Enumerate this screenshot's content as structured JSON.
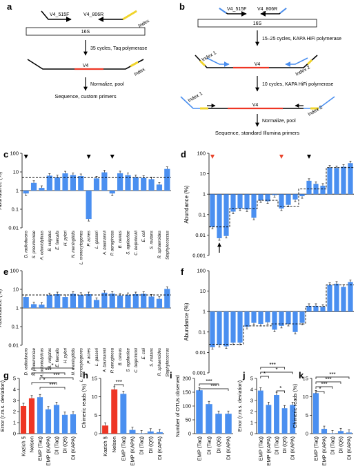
{
  "panel_labels": [
    "a",
    "b",
    "c",
    "d",
    "e",
    "f",
    "g",
    "h",
    "i",
    "j",
    "k"
  ],
  "schematic": {
    "a": {
      "primer_f": "V4_515F",
      "primer_r": "V4_806R",
      "index": "Index",
      "gene": "16S",
      "step1": "35 cycles, Taq polymerase",
      "region": "V4",
      "index2": "Index",
      "step2": "Normalize, pool",
      "step3": "Sequence, custom primers"
    },
    "b": {
      "primer_f": "V4_515F",
      "primer_r": "V4_806R",
      "gene": "16S",
      "step1": "15–25 cycles, KAPA HiFi polymerase",
      "index1": "Index 1",
      "region": "V4",
      "index2": "Index 2",
      "step2": "10 cycles, KAPA HiFi polymerase",
      "index1b": "Index 1",
      "region2": "V4",
      "index2b": "Index 2",
      "step3": "Normalize, pool",
      "step4": "Sequence, standard Illumina primers"
    }
  },
  "colors": {
    "blue": "#4a8ff0",
    "red": "#ee3524",
    "orange_marker": "#e8452c",
    "black": "#000000"
  },
  "chart_data": [
    {
      "panel": "c",
      "type": "bar",
      "ylabel": "Abundance (%)",
      "scale": "log",
      "ylim": [
        0.01,
        100
      ],
      "yticks": [
        "100",
        "10",
        "1",
        "0.1",
        "0.01"
      ],
      "categories": [
        "D. radiodurans",
        "S. pneumoniae",
        "A. odontolyticus",
        "B. vulgatus",
        "E. faecalis",
        "H. pylori",
        "N. meningitidis",
        "L. monocytogenes",
        "P. acnes",
        "L. gasseri",
        "A. baumannii",
        "P. aeruginosa",
        "B. cereus",
        "S. agalactiae",
        "C. beijerinckii",
        "E. coli",
        "S. mutans",
        "R. sphaeroides",
        "Staphylococcus"
      ],
      "values": [
        0.7,
        2.6,
        1.4,
        6.3,
        5.2,
        8.4,
        6.8,
        6.0,
        0.03,
        4.5,
        9.5,
        0.7,
        8.5,
        6.7,
        5.3,
        4.8,
        4.1,
        2.1,
        14.5
      ],
      "expected": 5.0,
      "markers": [
        {
          "category": "D. radiodurans",
          "color": "#000000"
        },
        {
          "category": "P. acnes",
          "color": "#000000"
        },
        {
          "category": "P. aeruginosa",
          "color": "#000000"
        }
      ]
    },
    {
      "panel": "d",
      "type": "bar",
      "ylabel": "Abundance (%)",
      "scale": "log",
      "ylim": [
        0.001,
        100
      ],
      "yticks": [
        "100",
        "10",
        "1",
        "0.1",
        "0.01",
        "0.001"
      ],
      "values": [
        0.025,
        0.007,
        0.009,
        0.14,
        0.2,
        0.18,
        0.07,
        0.5,
        0.45,
        0.9,
        0.2,
        0.3,
        0.55,
        0.8,
        4.5,
        3.2,
        2.6,
        20,
        19,
        22,
        33
      ],
      "expected": [
        0.025,
        0.025,
        0.025,
        0.2,
        0.2,
        0.2,
        0.2,
        0.5,
        0.5,
        0.5,
        0.25,
        0.25,
        0.25,
        1.8,
        1.8,
        1.8,
        1.8,
        20,
        20,
        20,
        20
      ],
      "markers": [
        {
          "index": 0,
          "color": "#e8452c"
        },
        {
          "index": 10,
          "color": "#e8452c"
        },
        {
          "index": 14,
          "color": "#000000"
        }
      ]
    },
    {
      "panel": "e",
      "type": "bar",
      "ylabel": "Abundance (%)",
      "scale": "log",
      "ylim": [
        0.01,
        100
      ],
      "yticks": [
        "100",
        "10",
        "1",
        "0.1",
        "0.01"
      ],
      "categories": [
        "D. radiodurans",
        "S. pneumoniae",
        "A. odontolyticus",
        "B. vulgatus",
        "E. faecalis",
        "H. pylori",
        "N. meningitidis",
        "L. monocytogenes",
        "P. acnes",
        "L. gasseri",
        "A. baumannii",
        "P. aeruginosa",
        "B. cereus",
        "S. agalactiae",
        "C. beijerinckii",
        "E. coli",
        "S. mutans",
        "R. sphaeroides",
        "Staphylococcus"
      ],
      "values": [
        3.9,
        1.6,
        1.5,
        4.9,
        5.5,
        3.9,
        5.7,
        5.1,
        5.5,
        2.7,
        6.6,
        5.8,
        4.6,
        5.0,
        5.5,
        5.7,
        4.1,
        3.1,
        10.5
      ],
      "expected": 5.0
    },
    {
      "panel": "f",
      "type": "bar",
      "ylabel": "Abundance (%)",
      "scale": "log",
      "ylim": [
        0.001,
        100
      ],
      "yticks": [
        "100",
        "10",
        "1",
        "0.1",
        "0.01",
        "0.001"
      ],
      "values": [
        0.018,
        0.023,
        0.02,
        0.03,
        0.03,
        0.18,
        0.28,
        0.25,
        0.3,
        0.13,
        0.2,
        0.25,
        0.1,
        0.28,
        1.9,
        1.9,
        1.7,
        20,
        23,
        16,
        28
      ],
      "expected": [
        0.025,
        0.025,
        0.025,
        0.025,
        0.025,
        0.2,
        0.2,
        0.2,
        0.2,
        0.25,
        0.25,
        0.25,
        0.25,
        0.25,
        1.8,
        1.8,
        1.8,
        20,
        20,
        20,
        20
      ]
    },
    {
      "panel": "g",
      "type": "bar",
      "ylabel": "Error (r.m.s. deviation)",
      "ylim": [
        0,
        5
      ],
      "yticks": [
        "0",
        "1",
        "2",
        "3",
        "4",
        "5"
      ],
      "categories": [
        "Kozich §",
        "Nelson",
        "EMP (Taq)",
        "EMP (KAPA)",
        "DI (Taq)",
        "DI (Q5)",
        "DI (KAPA)"
      ],
      "values": [
        2.5,
        3.2,
        3.3,
        2.2,
        2.6,
        1.7,
        1.75
      ],
      "colors": [
        "#ee3524",
        "#ee3524",
        "#4a8ff0",
        "#4a8ff0",
        "#4a8ff0",
        "#4a8ff0",
        "#4a8ff0"
      ],
      "significance": [
        "*",
        "***",
        "***",
        "*",
        "***"
      ]
    },
    {
      "panel": "h",
      "type": "bar",
      "ylabel": "Chimeric reads (%)",
      "ylim": [
        0,
        15
      ],
      "yticks": [
        "0",
        "5",
        "10",
        "15"
      ],
      "categories": [
        "Kozich §",
        "Nelson",
        "EMP (Taq)",
        "EMP (KAPA)",
        "DI (Taq)",
        "DI (Q5)",
        "DI (KAPA)"
      ],
      "values": [
        2.2,
        12.0,
        10.8,
        1.0,
        0.1,
        0.6,
        0.4
      ],
      "colors": [
        "#ee3524",
        "#ee3524",
        "#4a8ff0",
        "#4a8ff0",
        "#4a8ff0",
        "#4a8ff0",
        "#4a8ff0"
      ],
      "significance": [
        "***"
      ]
    },
    {
      "panel": "i",
      "type": "bar",
      "ylabel": "Number of OTUs observed",
      "ylim": [
        0,
        200
      ],
      "yticks": [
        "0",
        "50",
        "100",
        "150",
        "200"
      ],
      "categories": [
        "EMP (Taq)",
        "DI (Taq)",
        "DI (Q5)",
        "DI (KAPA)"
      ],
      "values": [
        157,
        107,
        72,
        72
      ],
      "significance": [
        "***",
        "***"
      ]
    },
    {
      "panel": "j",
      "type": "bar",
      "ylabel": "Error (r.m.s. deviation)",
      "ylim": [
        0,
        5
      ],
      "yticks": [
        "0",
        "1",
        "2",
        "3",
        "4",
        "5"
      ],
      "categories": [
        "EMP (Taq)",
        "EMP (KAPA)",
        "DI (Taq)",
        "DI (Q5)",
        "DI (KAPA)"
      ],
      "values": [
        3.9,
        2.6,
        3.5,
        2.3,
        2.6
      ],
      "significance": [
        "*",
        "***",
        "*",
        "*"
      ]
    },
    {
      "panel": "k",
      "type": "bar",
      "ylabel": "Chimeric reads (%)",
      "ylim": [
        0,
        15
      ],
      "yticks": [
        "0",
        "5",
        "10",
        "15"
      ],
      "categories": [
        "EMP (Taq)",
        "EMP (KAPA)",
        "DI (Taq)",
        "DI (Q5)",
        "DI (KAPA)"
      ],
      "values": [
        11.0,
        1.3,
        0.1,
        0.7,
        0.3
      ],
      "significance": [
        "*",
        "***",
        "***",
        "***"
      ]
    }
  ]
}
